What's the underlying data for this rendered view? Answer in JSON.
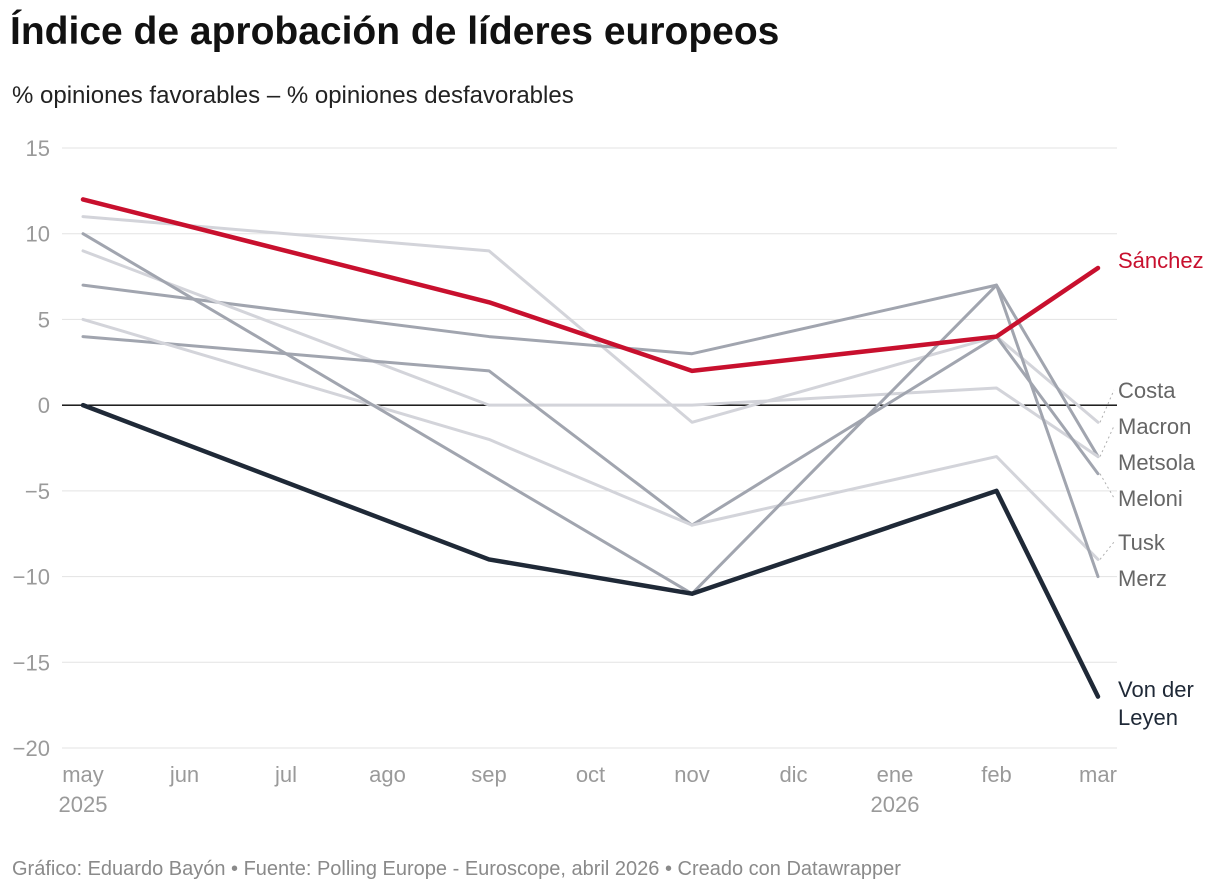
{
  "header": {
    "title": "Índice de aprobación de líderes europeos",
    "subtitle": "% opiniones favorables – % opiniones desfavorables"
  },
  "footer": {
    "credit": "Gráfico: Eduardo Bayón • Fuente: Polling Europe - Euroscope, abril 2026 • Creado con Datawrapper"
  },
  "chart_data": {
    "type": "line",
    "title": "Índice de aprobación de líderes europeos",
    "subtitle": "% opiniones favorables – % opiniones desfavorables",
    "xlabel": "",
    "ylabel": "",
    "x": [
      "may",
      "jun",
      "jul",
      "ago",
      "sep",
      "oct",
      "nov",
      "dic",
      "ene",
      "feb",
      "mar"
    ],
    "x_year_labels": [
      {
        "month": "may",
        "year": "2025"
      },
      {
        "month": "ene",
        "year": "2026"
      }
    ],
    "ylim": [
      -20,
      15
    ],
    "yticks": [
      15,
      10,
      5,
      0,
      -5,
      -10,
      -15,
      -20
    ],
    "ytick_labels": [
      "15",
      "10",
      "5",
      "0",
      "−5",
      "−10",
      "−15",
      "−20"
    ],
    "grid": true,
    "legend": "direct labels at line ends (right)",
    "zero_line": true,
    "series": [
      {
        "name": "Costa",
        "color": "#d3d4da",
        "label_color": "#666666",
        "points": [
          [
            "may",
            11
          ],
          [
            "sep",
            9
          ],
          [
            "nov",
            -1
          ],
          [
            "feb",
            4
          ],
          [
            "mar",
            -1
          ]
        ]
      },
      {
        "name": "Macron",
        "color": "#a1a5af",
        "label_color": "#666666",
        "points": [
          [
            "may",
            7
          ],
          [
            "sep",
            4
          ],
          [
            "nov",
            3
          ],
          [
            "feb",
            7
          ],
          [
            "mar",
            -3
          ]
        ]
      },
      {
        "name": "Metsola",
        "color": "#d3d4da",
        "label_color": "#666666",
        "points": [
          [
            "may",
            9
          ],
          [
            "sep",
            0
          ],
          [
            "nov",
            0
          ],
          [
            "feb",
            1
          ],
          [
            "mar",
            -3
          ]
        ]
      },
      {
        "name": "Meloni",
        "color": "#a1a5af",
        "label_color": "#666666",
        "points": [
          [
            "may",
            4
          ],
          [
            "sep",
            2
          ],
          [
            "nov",
            -7
          ],
          [
            "feb",
            4
          ],
          [
            "mar",
            -4
          ]
        ]
      },
      {
        "name": "Tusk",
        "color": "#d3d4da",
        "label_color": "#666666",
        "points": [
          [
            "may",
            5
          ],
          [
            "sep",
            -2
          ],
          [
            "nov",
            -7
          ],
          [
            "feb",
            -3
          ],
          [
            "mar",
            -9
          ]
        ]
      },
      {
        "name": "Merz",
        "color": "#a1a5af",
        "label_color": "#666666",
        "points": [
          [
            "may",
            10
          ],
          [
            "sep",
            -4
          ],
          [
            "nov",
            -11
          ],
          [
            "feb",
            7
          ],
          [
            "mar",
            -10
          ]
        ]
      },
      {
        "name": "Von der Leyen",
        "label_lines": [
          "Von der",
          "Leyen"
        ],
        "color": "#1f2937",
        "label_color": "#1f2937",
        "points": [
          [
            "may",
            0
          ],
          [
            "sep",
            -9
          ],
          [
            "nov",
            -11
          ],
          [
            "feb",
            -5
          ],
          [
            "mar",
            -17
          ]
        ]
      },
      {
        "name": "Sánchez",
        "color": "#c8102e",
        "label_color": "#c8102e",
        "points": [
          [
            "may",
            12
          ],
          [
            "sep",
            6
          ],
          [
            "nov",
            2
          ],
          [
            "feb",
            4
          ],
          [
            "mar",
            8
          ]
        ]
      }
    ]
  }
}
